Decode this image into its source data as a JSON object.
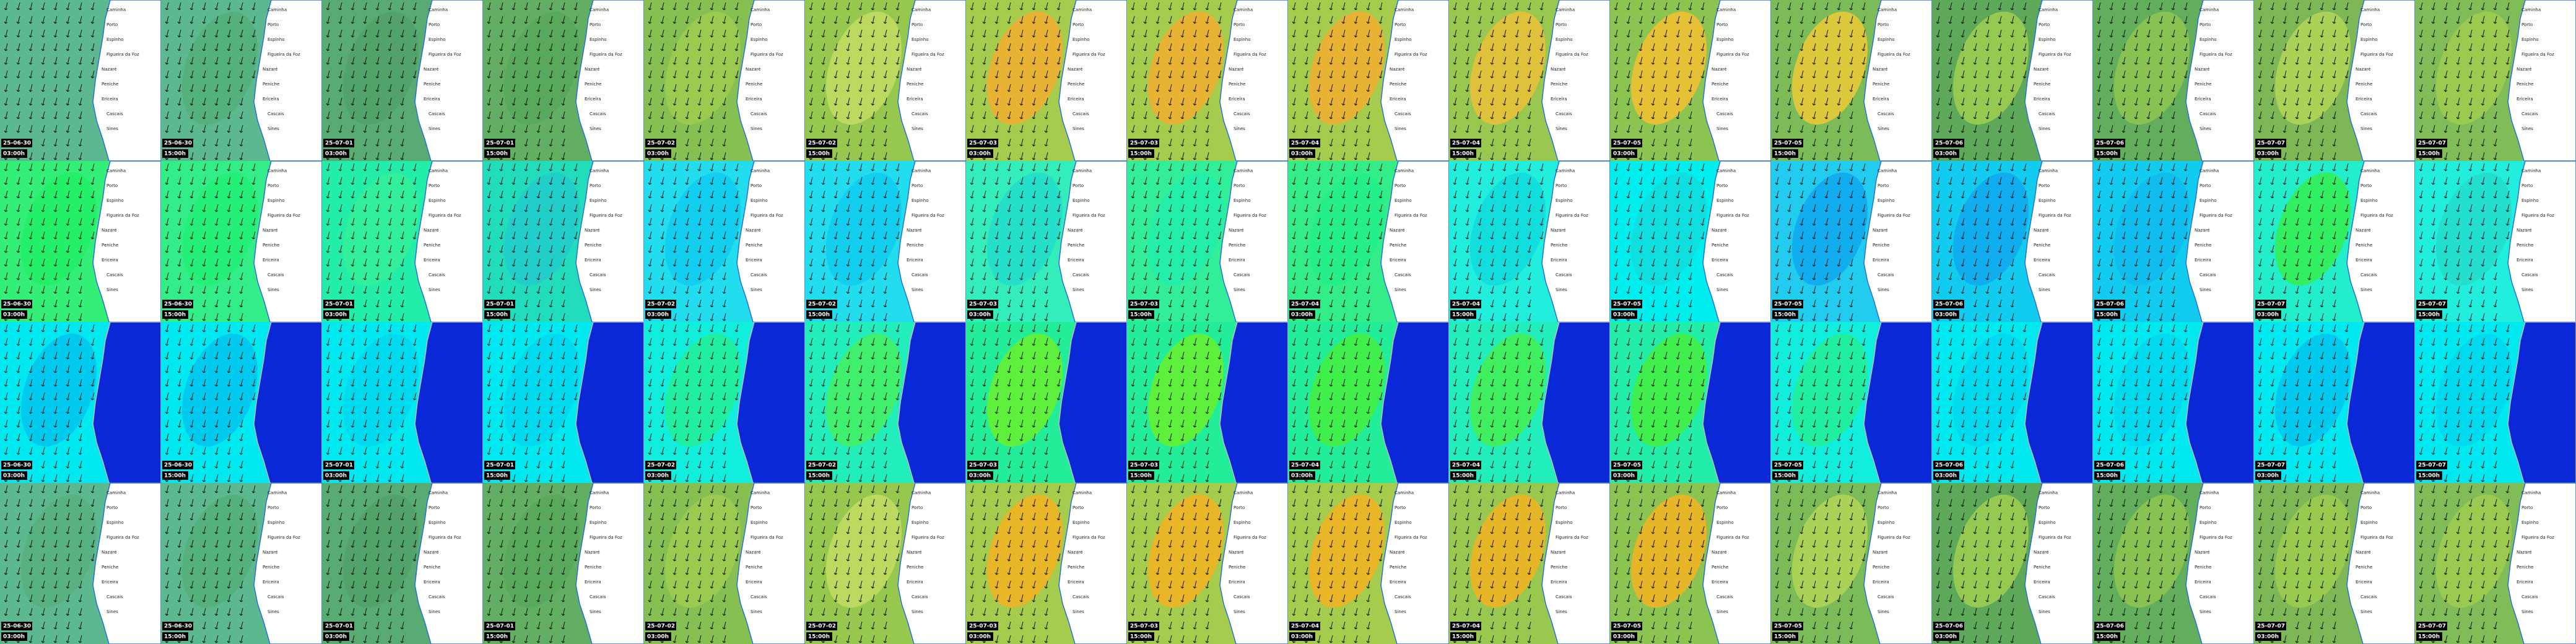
{
  "timestamps": [
    {
      "date": "25-06-30",
      "time": "03:00h"
    },
    {
      "date": "25-06-30",
      "time": "15:00h"
    },
    {
      "date": "25-07-01",
      "time": "03:00h"
    },
    {
      "date": "25-07-01",
      "time": "15:00h"
    },
    {
      "date": "25-07-02",
      "time": "03:00h"
    },
    {
      "date": "25-07-02",
      "time": "15:00h"
    },
    {
      "date": "25-07-03",
      "time": "03:00h"
    },
    {
      "date": "25-07-03",
      "time": "15:00h"
    },
    {
      "date": "25-07-04",
      "time": "03:00h"
    },
    {
      "date": "25-07-04",
      "time": "15:00h"
    },
    {
      "date": "25-07-05",
      "time": "03:00h"
    },
    {
      "date": "25-07-05",
      "time": "15:00h"
    },
    {
      "date": "25-07-06",
      "time": "03:00h"
    },
    {
      "date": "25-07-06",
      "time": "15:00h"
    },
    {
      "date": "25-07-07",
      "time": "03:00h"
    },
    {
      "date": "25-07-07",
      "time": "15:00h"
    }
  ],
  "places": [
    "Caminha",
    "Porto",
    "Espinho",
    "Figueira da Foz",
    "Nazaré",
    "Peniche",
    "Ericeira",
    "Cascais",
    "Sines"
  ],
  "rows": [
    {
      "land": "#ffffff",
      "labels": true,
      "sea": [
        "#5cb88e",
        "#5cb88e",
        "#58ab72",
        "#62ae62",
        "#86c053",
        "#96c850",
        "#a6cc4e",
        "#a6cc4e",
        "#a6cc4e",
        "#98c850",
        "#8cc452",
        "#7cbc58",
        "#5ea85a",
        "#62ae5c",
        "#7eb856",
        "#80bc58"
      ],
      "accent": [
        "#5cb88e",
        "#54b07a",
        "#52a268",
        "#58a85c",
        "#9ccc50",
        "#c0dc60",
        "#f0b032",
        "#f0b032",
        "#f0b032",
        "#e8c038",
        "#f0c032",
        "#e8c838",
        "#9ccc50",
        "#8cc452",
        "#b0d458",
        "#9ccc50"
      ]
    },
    {
      "land": "#ffffff",
      "labels": true,
      "sea": [
        "#33ee77",
        "#33ee88",
        "#22eeaa",
        "#22ddbb",
        "#22ddee",
        "#22ddee",
        "#33eebb",
        "#33ee99",
        "#33ee88",
        "#22eedd",
        "#00eeee",
        "#22ccee",
        "#11ccee",
        "#11ccee",
        "#22eecc",
        "#22eedd"
      ],
      "accent": [
        "#22ee66",
        "#22ee77",
        "#33ee99",
        "#22cccc",
        "#11ccee",
        "#11ccee",
        "#22ddcc",
        "#22eeaa",
        "#22ee88",
        "#11dddd",
        "#11dddd",
        "#11aaee",
        "#11aaee",
        "#11bbee",
        "#33ee55",
        "#22ddcc"
      ]
    },
    {
      "land": "#0a28d8",
      "labels": false,
      "sea": [
        "#00e8f0",
        "#00e8f0",
        "#00e8f0",
        "#00e8f0",
        "#11eedd",
        "#22eebb",
        "#22ee99",
        "#22ee99",
        "#22ee99",
        "#22eebb",
        "#22eeaa",
        "#11eedd",
        "#00e8f0",
        "#00e8f0",
        "#00e8f0",
        "#00e8f0"
      ],
      "accent": [
        "#00c8ee",
        "#00c8ee",
        "#00d8ee",
        "#00d8ee",
        "#22ee99",
        "#44ee66",
        "#66ee33",
        "#66ee33",
        "#44ee44",
        "#44ee55",
        "#44ee44",
        "#22ee99",
        "#00d8ee",
        "#00d8ee",
        "#00c8ee",
        "#00d8ee"
      ]
    },
    {
      "land": "#ffffff",
      "labels": true,
      "sea": [
        "#5cb88e",
        "#5cb88e",
        "#58ab72",
        "#62ae62",
        "#86c053",
        "#96c850",
        "#a6cc4e",
        "#a6cc4e",
        "#a6cc4e",
        "#98c850",
        "#8cc452",
        "#7cbc58",
        "#5ea85a",
        "#62ae5c",
        "#7eb856",
        "#80bc58"
      ],
      "accent": [
        "#58b080",
        "#54b07a",
        "#52a268",
        "#58a85c",
        "#9ccc50",
        "#c0dc60",
        "#f0b424",
        "#f0b424",
        "#f0b424",
        "#f0b424",
        "#f0b424",
        "#b0d458",
        "#9ccc50",
        "#8cc452",
        "#9ccc50",
        "#9ccc50"
      ]
    }
  ]
}
